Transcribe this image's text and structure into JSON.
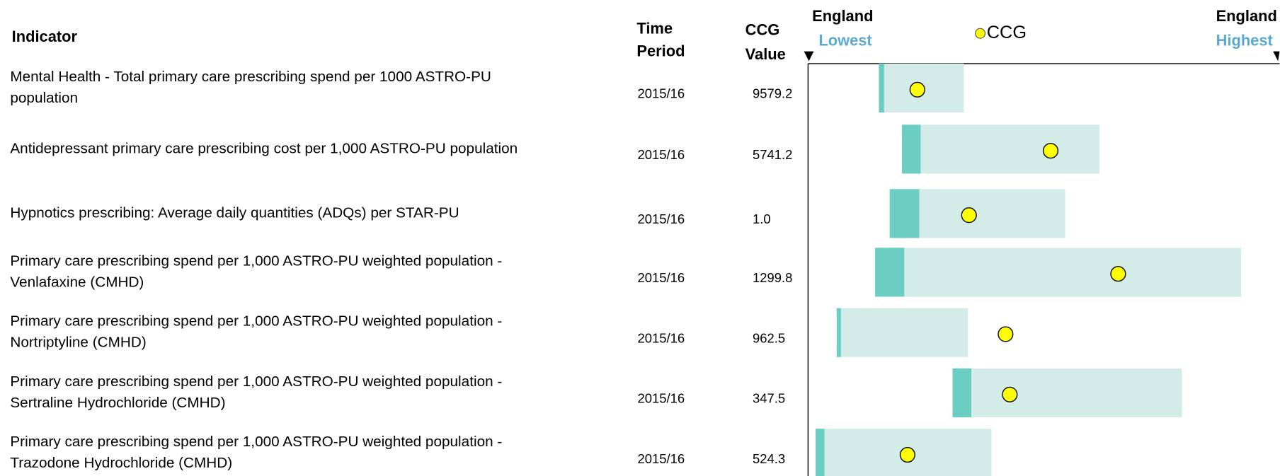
{
  "header": {
    "indicator": "Indicator",
    "time_period": [
      "Time",
      "Period"
    ],
    "ccg_value": [
      "CCG",
      "Value"
    ],
    "lowest": [
      "England",
      "Lowest"
    ],
    "legend": "CCG",
    "highest": [
      "England",
      "Highest"
    ]
  },
  "colors": {
    "range": "#d3ece8",
    "quartile": "#6ccdc3",
    "ccg": "#ffff00",
    "accent": "#5aaad0"
  },
  "xlim": [
    0,
    1
  ],
  "rows": [
    {
      "indicator": [
        "Mental Health - Total primary care prescribing spend per 1000 ASTRO-PU",
        "population"
      ],
      "period": "2015/16",
      "value": "9579.2",
      "low": 0.151,
      "mid": 0.162,
      "high": 0.332,
      "ccg": 0.233
    },
    {
      "indicator": [
        "Antidepressant primary care prescribing cost per 1,000 ASTRO-PU population"
      ],
      "period": "2015/16",
      "value": "5741.2",
      "low": 0.2,
      "mid": 0.24,
      "high": 0.621,
      "ccg": 0.517
    },
    {
      "indicator": [
        "Hypnotics prescribing: Average daily quantities (ADQs) per STAR-PU"
      ],
      "period": "2015/16",
      "value": "1.0",
      "low": 0.174,
      "mid": 0.237,
      "high": 0.548,
      "ccg": 0.343
    },
    {
      "indicator": [
        "Primary care prescribing spend per 1,000 ASTRO-PU weighted population -",
        "Venlafaxine (CMHD)"
      ],
      "period": "2015/16",
      "value": "1299.8",
      "low": 0.143,
      "mid": 0.205,
      "high": 0.923,
      "ccg": 0.661
    },
    {
      "indicator": [
        "Primary care prescribing spend per 1,000 ASTRO-PU weighted population -",
        "Nortriptyline (CMHD)"
      ],
      "period": "2015/16",
      "value": "962.5",
      "low": 0.061,
      "mid": 0.07,
      "high": 0.341,
      "ccg": 0.421
    },
    {
      "indicator": [
        "Primary care prescribing spend per 1,000 ASTRO-PU weighted population -",
        "Sertraline Hydrochloride (CMHD)"
      ],
      "period": "2015/16",
      "value": "347.5",
      "low": 0.308,
      "mid": 0.348,
      "high": 0.797,
      "ccg": 0.43
    },
    {
      "indicator": [
        "Primary care prescribing spend per 1,000 ASTRO-PU weighted population -",
        "Trazodone Hydrochloride (CMHD)"
      ],
      "period": "2015/16",
      "value": "524.3",
      "low": 0.016,
      "mid": 0.035,
      "high": 0.391,
      "ccg": 0.212
    }
  ]
}
